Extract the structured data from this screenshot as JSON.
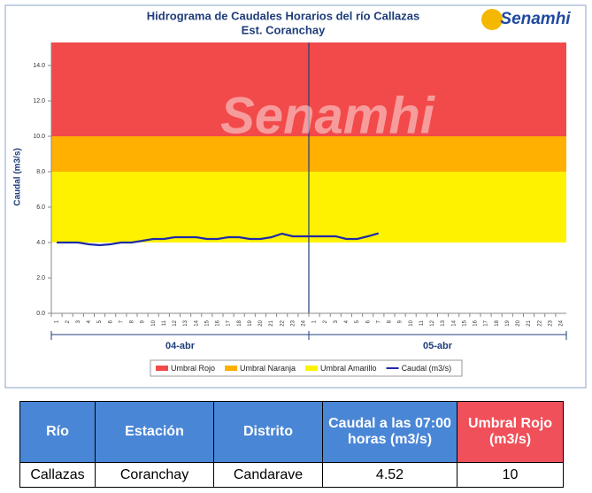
{
  "chart_data": {
    "type": "line",
    "title": "Hidrograma de Caudales Horarios del río Callazas",
    "subtitle": "Est. Coranchay",
    "logo": "Senamhi",
    "y_label": "Caudal (m3/s)",
    "categories": [
      "1",
      "2",
      "3",
      "4",
      "5",
      "6",
      "7",
      "8",
      "9",
      "10",
      "11",
      "12",
      "13",
      "14",
      "15",
      "16",
      "17",
      "18",
      "19",
      "20",
      "21",
      "22",
      "23",
      "24",
      "1",
      "2",
      "3",
      "4",
      "5",
      "6",
      "7",
      "8",
      "9",
      "10",
      "11",
      "12",
      "13",
      "14",
      "15",
      "16",
      "17",
      "18",
      "19",
      "20",
      "21",
      "22",
      "23",
      "24"
    ],
    "groups": [
      "04-abr",
      "05-abr"
    ],
    "ylim": [
      0,
      15.3
    ],
    "yticks": [
      {
        "value": 0,
        "label": "0.0"
      },
      {
        "value": 2,
        "label": "2.0"
      },
      {
        "value": 4,
        "label": "4.0"
      },
      {
        "value": 6,
        "label": "6.0"
      },
      {
        "value": 8,
        "label": "8.0"
      },
      {
        "value": 10,
        "label": "10.0"
      },
      {
        "value": 12,
        "label": "12.0"
      },
      {
        "value": 14,
        "label": "14.0"
      }
    ],
    "thresholds": [
      {
        "name": "Umbral Rojo",
        "color": "#f24a4a",
        "value": 10
      },
      {
        "name": "Umbral Naranja",
        "color": "#ffb000",
        "value": 8
      },
      {
        "name": "Umbral Amarillo",
        "color": "#fff200",
        "value": 4
      }
    ],
    "series": [
      {
        "name": "Caudal (m3/s)",
        "color": "#1f2aa8",
        "values": [
          4.0,
          4.0,
          4.0,
          3.9,
          3.85,
          3.9,
          4.0,
          4.0,
          4.1,
          4.2,
          4.2,
          4.3,
          4.3,
          4.3,
          4.2,
          4.2,
          4.3,
          4.3,
          4.2,
          4.2,
          4.3,
          4.5,
          4.35,
          4.35,
          4.35,
          4.35,
          4.35,
          4.2,
          4.2,
          4.35,
          4.52,
          null,
          null,
          null,
          null,
          null,
          null,
          null,
          null,
          null,
          null,
          null,
          null,
          null,
          null,
          null,
          null,
          null
        ]
      }
    ]
  },
  "table": {
    "headers": [
      "Río",
      "Estación",
      "Distrito",
      "Caudal a las 07:00 horas (m3/s)",
      "Umbral  Rojo (m3/s)"
    ],
    "rows": [
      [
        "Callazas",
        "Coranchay",
        "Candarave",
        "4.52",
        "10"
      ]
    ]
  }
}
